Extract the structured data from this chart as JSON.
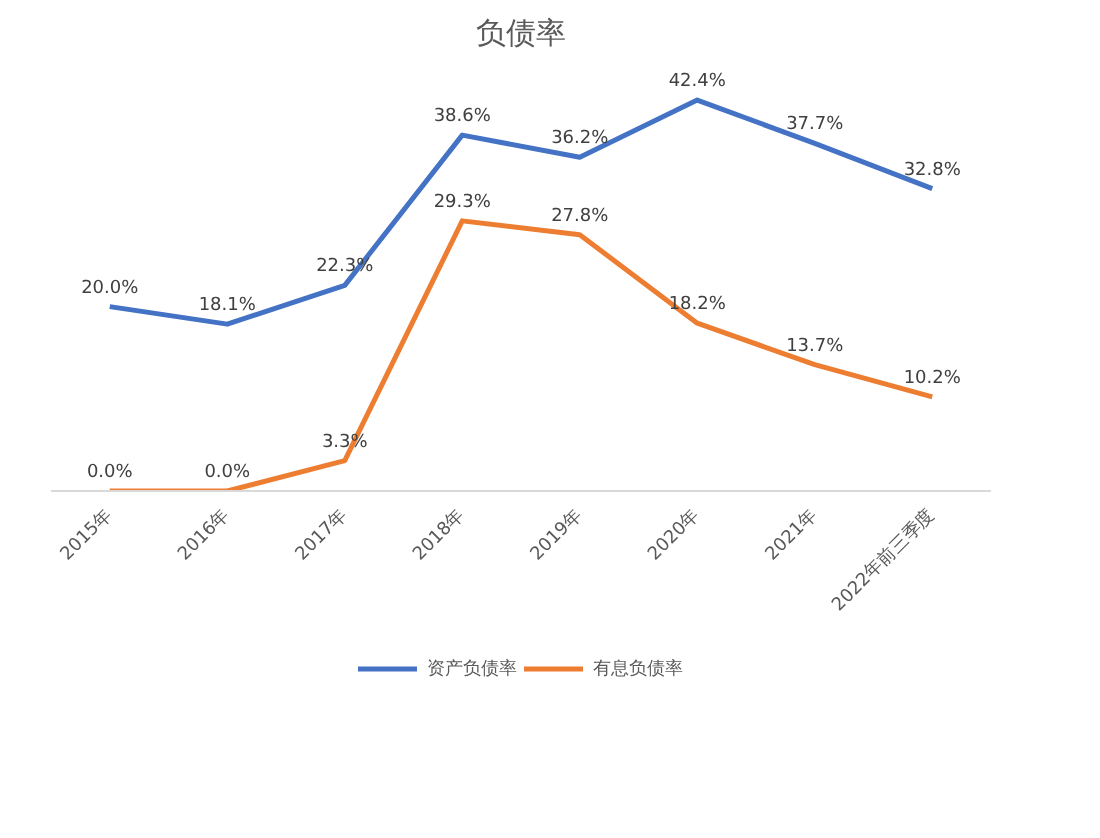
{
  "chart_data": {
    "type": "line",
    "title": "负债率",
    "categories": [
      "2015年",
      "2016年",
      "2017年",
      "2018年",
      "2019年",
      "2020年",
      "2021年",
      "2022年前三季度"
    ],
    "series": [
      {
        "name": "资产负债率",
        "color": "#4472c4",
        "values": [
          20.0,
          18.1,
          22.3,
          38.6,
          36.2,
          42.4,
          37.7,
          32.8
        ],
        "value_labels": [
          "20.0%",
          "18.1%",
          "22.3%",
          "38.6%",
          "36.2%",
          "42.4%",
          "37.7%",
          "32.8%"
        ]
      },
      {
        "name": "有息负债率",
        "color": "#ed7d31",
        "values": [
          0.0,
          0.0,
          3.3,
          29.3,
          27.8,
          18.2,
          13.7,
          10.2
        ],
        "value_labels": [
          "0.0%",
          "0.0%",
          "3.3%",
          "29.3%",
          "27.8%",
          "18.2%",
          "13.7%",
          "10.2%"
        ]
      }
    ],
    "legend": "bottom",
    "grid": false,
    "marker": "none",
    "line_style": "solid"
  }
}
